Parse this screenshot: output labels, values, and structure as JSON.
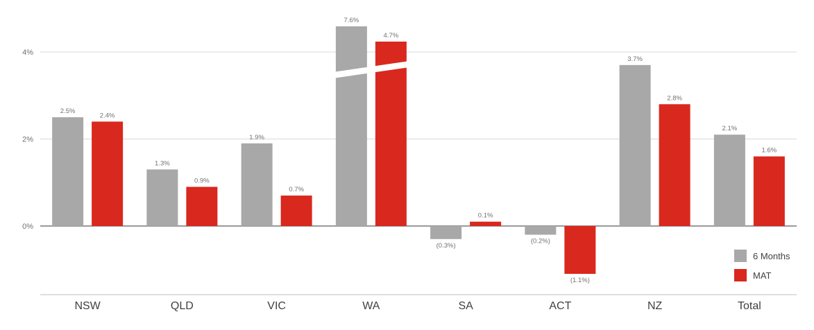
{
  "chart_data": {
    "type": "bar",
    "categories": [
      "NSW",
      "QLD",
      "VIC",
      "WA",
      "SA",
      "ACT",
      "NZ",
      "Total"
    ],
    "series": [
      {
        "name": "6 Months",
        "color": "#a8a8a8",
        "values": [
          2.5,
          1.3,
          1.9,
          7.6,
          -0.3,
          -0.2,
          3.7,
          2.1
        ],
        "labels": [
          "2.5%",
          "1.3%",
          "1.9%",
          "7.6%",
          "(0.3%)",
          "(0.2%)",
          "3.7%",
          "2.1%"
        ]
      },
      {
        "name": "MAT",
        "color": "#d9281e",
        "values": [
          2.4,
          0.9,
          0.7,
          4.7,
          0.1,
          -1.1,
          2.8,
          1.6
        ],
        "labels": [
          "2.4%",
          "0.9%",
          "0.7%",
          "4.7%",
          "0.1%",
          "(1.1%)",
          "2.8%",
          "1.6%"
        ]
      }
    ],
    "y_ticks": [
      {
        "value": 0,
        "label": "0%"
      },
      {
        "value": 2,
        "label": "2%"
      },
      {
        "value": 4,
        "label": "4%"
      }
    ],
    "ylim": [
      -1.6,
      4.7
    ],
    "axis_break": {
      "category": "WA",
      "note": "WA bars truncated with break marks"
    },
    "grid": true,
    "legend_position": "bottom-right"
  }
}
